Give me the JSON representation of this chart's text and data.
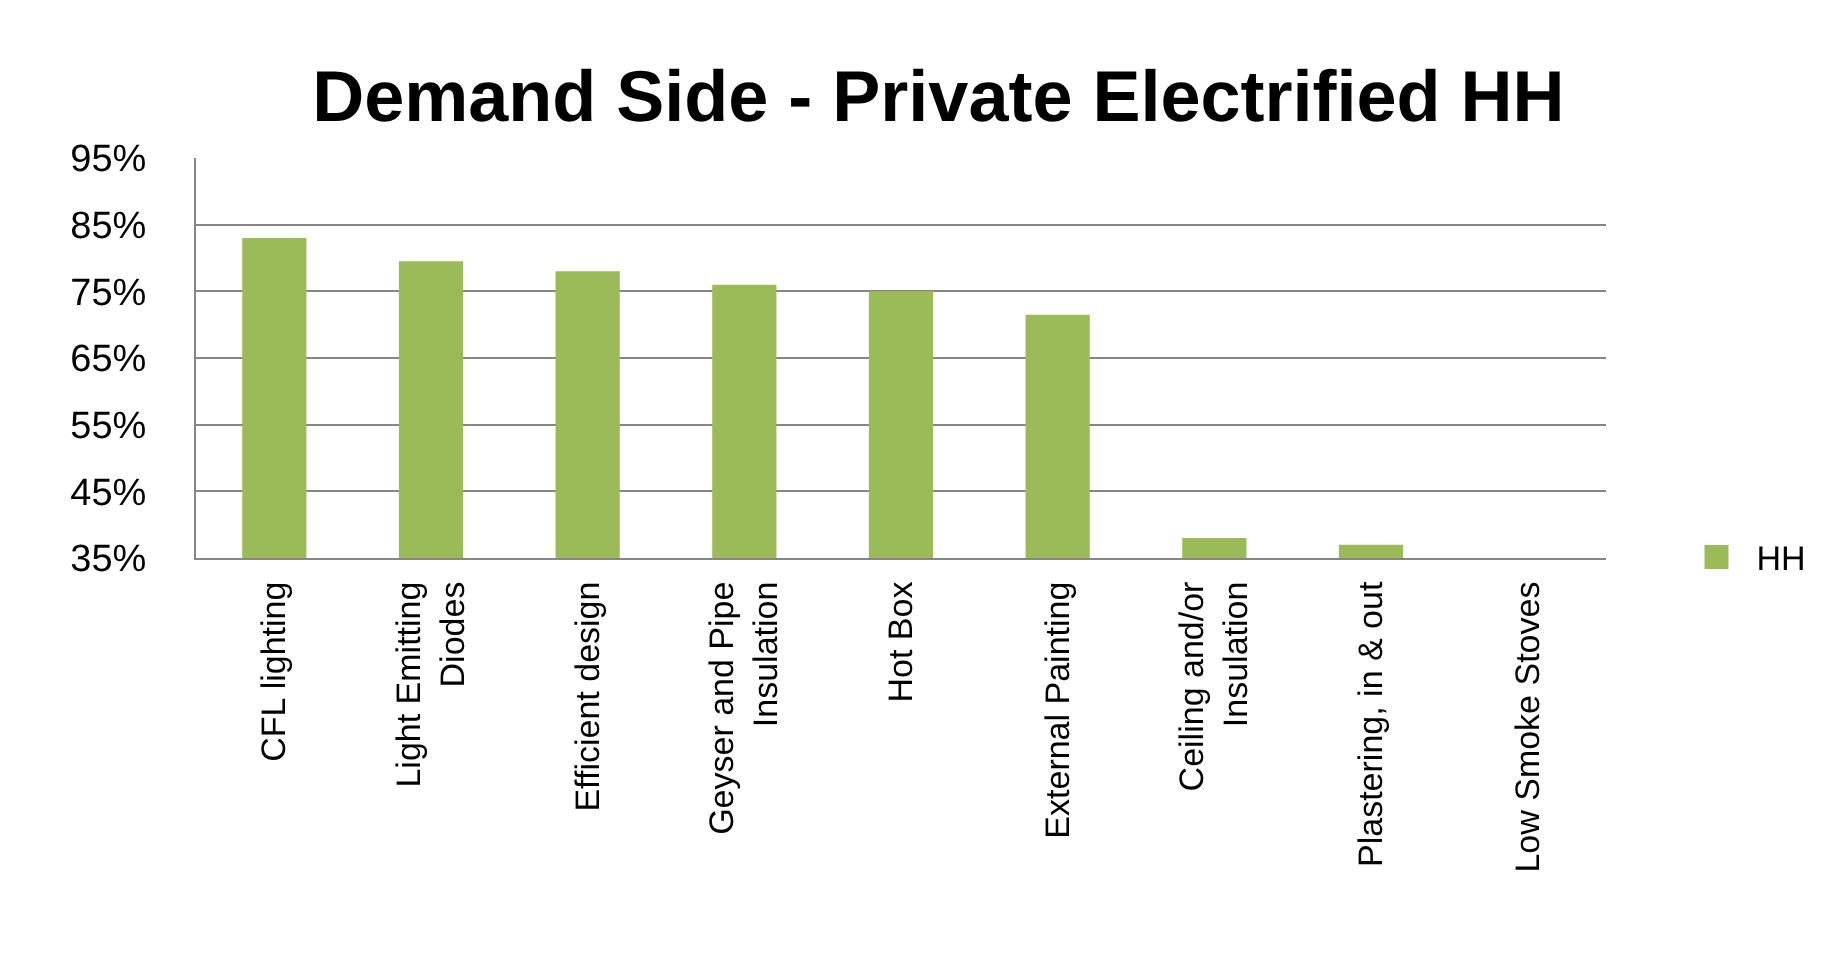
{
  "chart_data": {
    "type": "bar",
    "title": "Demand Side - Private Electrified HH",
    "categories": [
      "CFL lighting",
      "Light Emitting Diodes",
      "Efficient design",
      "Geyser and Pipe Insulation",
      "Hot Box",
      "External Painting",
      "Ceiling and/or Insulation",
      "Plastering, in & out",
      "Low Smoke Stoves"
    ],
    "series": [
      {
        "name": "HH",
        "color": "#9bbb59",
        "values": [
          83,
          79.5,
          78,
          76,
          75,
          71.5,
          38,
          37,
          null
        ]
      }
    ],
    "ylim": [
      35,
      95
    ],
    "yticks": [
      {
        "value": 35,
        "label": "35%"
      },
      {
        "value": 45,
        "label": "45%"
      },
      {
        "value": 55,
        "label": "55%"
      },
      {
        "value": 65,
        "label": "65%"
      },
      {
        "value": 75,
        "label": "75%"
      },
      {
        "value": 85,
        "label": "85%"
      },
      {
        "value": 95,
        "label": "95%"
      }
    ],
    "grid": "y",
    "legend": "right"
  }
}
